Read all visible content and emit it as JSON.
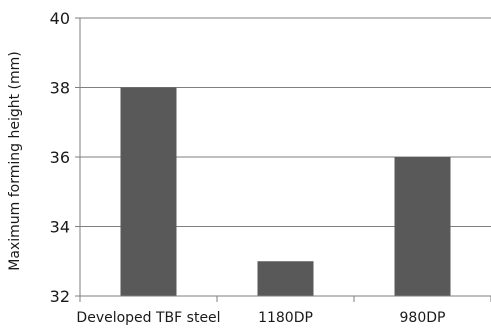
{
  "chart_data": {
    "type": "bar",
    "title": "",
    "xlabel": "",
    "ylabel": "Maximum forming height (mm)",
    "categories": [
      "Developed TBF steel",
      "1180DP",
      "980DP"
    ],
    "values": [
      38,
      33,
      36
    ],
    "ylim": [
      32,
      40
    ],
    "yticks": [
      "32",
      "34",
      "36",
      "38",
      "40"
    ],
    "grid": "horizontal",
    "bar_color": "#595959",
    "axis_color": "#7f7f7f",
    "grid_color": "#7f7f7f"
  }
}
